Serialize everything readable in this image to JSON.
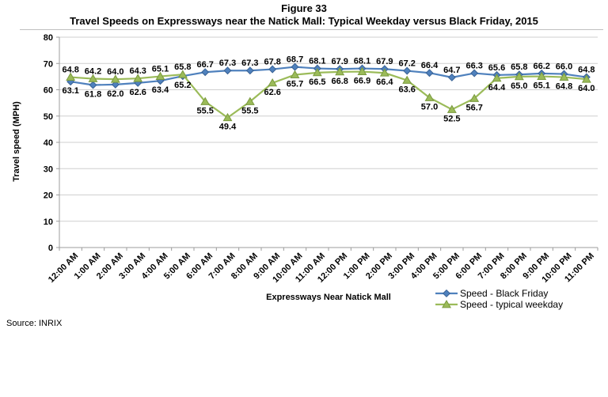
{
  "figure": {
    "number": "Figure 33",
    "title": "Travel Speeds on Expressways near the Natick Mall: Typical Weekday versus Black Friday, 2015"
  },
  "source_note": "Source: INRIX",
  "chart_data": {
    "type": "line",
    "title": "Travel Speeds on Expressways near the Natick Mall: Typical Weekday versus Black Friday, 2015",
    "xlabel": "Expressways Near Natick Mall",
    "ylabel": "Travel speed (MPH)",
    "ylim": [
      0,
      80
    ],
    "ytick_step": 10,
    "grid": true,
    "legend_position": "bottom-right",
    "data_labels": true,
    "categories": [
      "12:00 AM",
      "1:00 AM",
      "2:00 AM",
      "3:00 AM",
      "4:00 AM",
      "5:00 AM",
      "6:00 AM",
      "7:00 AM",
      "8:00 AM",
      "9:00 AM",
      "10:00 AM",
      "11:00 AM",
      "12:00 PM",
      "1:00 PM",
      "2:00 PM",
      "3:00 PM",
      "4:00 PM",
      "5:00 PM",
      "6:00 PM",
      "7:00 PM",
      "8:00 PM",
      "9:00 PM",
      "10:00 PM",
      "11:00 PM"
    ],
    "series": [
      {
        "name": "Speed - Black Friday",
        "color": "#4F81BD",
        "edge_color": "#3A6395",
        "marker": "diamond",
        "values": [
          63.1,
          61.8,
          62.0,
          62.6,
          63.4,
          65.2,
          66.7,
          67.3,
          67.3,
          67.8,
          68.7,
          68.1,
          67.9,
          68.1,
          67.9,
          67.2,
          66.4,
          64.7,
          66.3,
          65.6,
          65.8,
          66.2,
          66.0,
          64.8
        ]
      },
      {
        "name": "Speed - typical weekday",
        "color": "#9BBB59",
        "edge_color": "#7A9A3F",
        "marker": "triangle",
        "values": [
          64.8,
          64.2,
          64.0,
          64.3,
          65.1,
          65.8,
          55.5,
          49.4,
          55.5,
          62.6,
          65.7,
          66.5,
          66.8,
          66.9,
          66.4,
          63.6,
          57.0,
          52.5,
          56.7,
          64.4,
          65.0,
          65.1,
          64.8,
          64.0
        ]
      }
    ],
    "axis_color": "#9C9C9C",
    "grid_color": "#CFCFCF",
    "label_color": "#000000"
  }
}
